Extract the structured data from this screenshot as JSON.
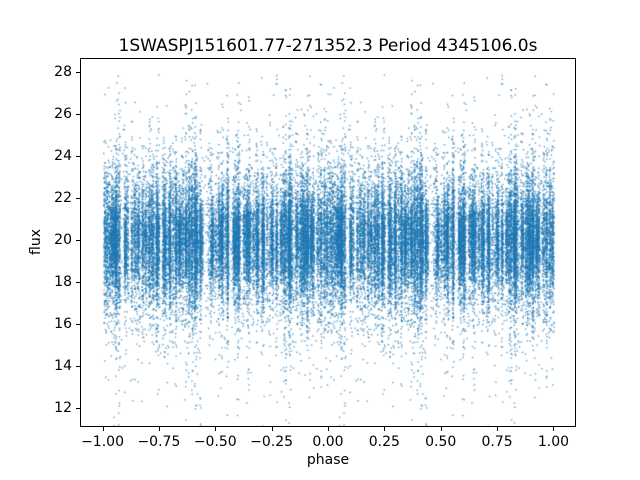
{
  "title": "1SWASPJ151601.77-271352.3 Period 4345106.0s",
  "chart_data": {
    "type": "scatter",
    "title": "1SWASPJ151601.77-271352.3 Period 4345106.0s",
    "xlabel": "phase",
    "ylabel": "flux",
    "xlim": [
      -1.1,
      1.1
    ],
    "ylim": [
      11.1,
      28.67
    ],
    "xticks": {
      "values": [
        -1.0,
        -0.75,
        -0.5,
        -0.25,
        0.0,
        0.25,
        0.5,
        0.75,
        1.0
      ],
      "labels": [
        "−1.00",
        "−0.75",
        "−0.50",
        "−0.25",
        "0.00",
        "0.25",
        "0.50",
        "0.75",
        "1.00"
      ]
    },
    "yticks": {
      "values": [
        12,
        14,
        16,
        18,
        20,
        22,
        24,
        26,
        28
      ],
      "labels": [
        "12",
        "14",
        "16",
        "18",
        "20",
        "22",
        "24",
        "26",
        "28"
      ]
    },
    "marker_color": "#1f77b4",
    "marker_alpha": 0.7,
    "marker_size": 1.4,
    "grid": false,
    "legend": null,
    "point_cloud": {
      "seed": 42,
      "phase_folded_copies": [
        0,
        -1
      ],
      "n_columns": 170,
      "points_per_column_min": 40,
      "points_per_column_max": 200,
      "flux_mean": 20.0,
      "column_sigma_min": 0.9,
      "column_sigma_max": 2.0,
      "streak_probability": 0.4,
      "streak_points_min": 10,
      "streak_points_max": 50,
      "streak_spread_min": 3.0,
      "streak_spread_max": 8.0,
      "background_points": 1500,
      "background_sigma": 2.5,
      "flux_min_observed": 11.3,
      "flux_max_observed": 27.6
    }
  }
}
